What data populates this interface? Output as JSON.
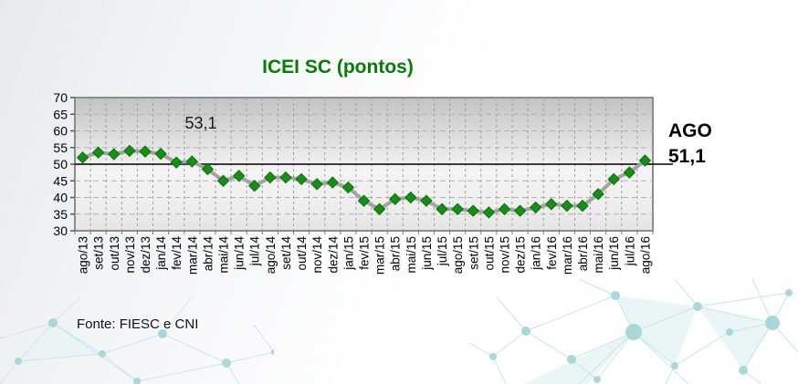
{
  "slide": {
    "title": "ICEI SC (pontos)",
    "title_color": "#067d06",
    "annotation": "53,1",
    "latest_label": "AGO",
    "latest_value": "51,1",
    "source": "Fonte: FIESC e CNI"
  },
  "chart_data": {
    "type": "line",
    "title": "ICEI SC (pontos)",
    "xlabel": "",
    "ylabel": "",
    "ylim": [
      30,
      70
    ],
    "ytick_step": 5,
    "grid": true,
    "legend_position": "none",
    "reference_line": 50,
    "categories": [
      "ago/13",
      "set/13",
      "out/13",
      "nov/13",
      "dez/13",
      "jan/14",
      "fev/14",
      "mar/14",
      "abr/14",
      "mai/14",
      "jun/14",
      "jul/14",
      "ago/14",
      "set/14",
      "out/14",
      "nov/14",
      "dez/14",
      "jan/15",
      "fev/15",
      "mar/15",
      "abr/15",
      "mai/15",
      "jun/15",
      "jul/15",
      "ago/15",
      "set/15",
      "out/15",
      "nov/15",
      "dez/15",
      "jan/16",
      "fev/16",
      "mar/16",
      "abr/16",
      "mai/16",
      "jun/16",
      "jul/16",
      "ago/16"
    ],
    "values": [
      52.0,
      53.5,
      53.0,
      54.0,
      53.8,
      53.1,
      50.5,
      50.8,
      48.5,
      45.0,
      46.5,
      43.5,
      46.0,
      46.0,
      45.5,
      44.0,
      44.5,
      43.0,
      39.0,
      36.5,
      39.5,
      40.0,
      39.0,
      36.5,
      36.5,
      36.0,
      35.5,
      36.5,
      36.0,
      37.0,
      38.0,
      37.5,
      37.5,
      41.0,
      45.5,
      47.5,
      51.1
    ],
    "annotations": [
      {
        "text": "53,1"
      },
      {
        "text": "AGO"
      },
      {
        "text": "51,1"
      }
    ],
    "colors": {
      "marker_fill": "#149114",
      "marker_stroke": "#0b6e0b",
      "series_line": "#a3a3a3",
      "reference_line": "#000000",
      "title": "#067d06",
      "plot_border": "#8c8c8c",
      "grid_vertical": "#9f9f9f",
      "grid_horizontal": "#b3b3b3",
      "deco_network": "#bfe3e4"
    }
  }
}
